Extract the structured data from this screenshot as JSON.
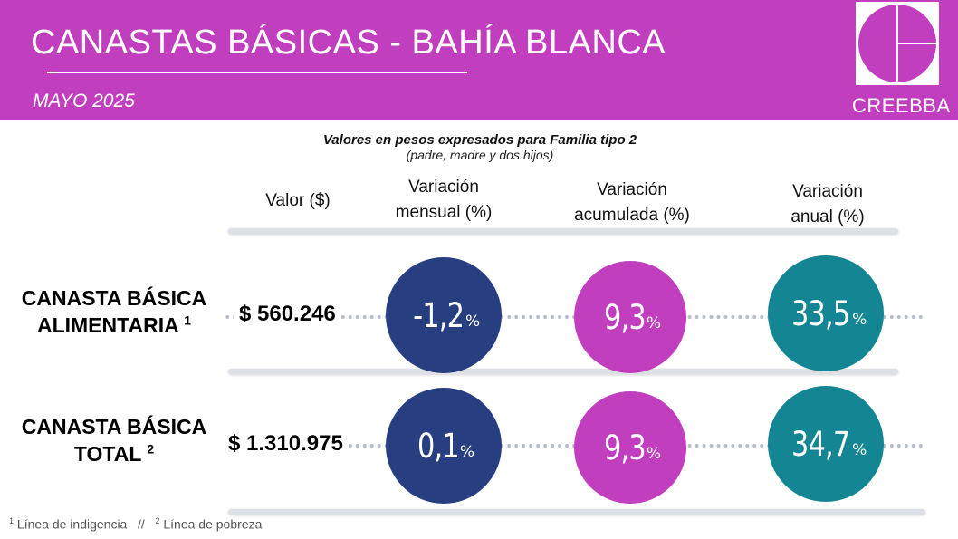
{
  "header": {
    "title": "CANASTAS  BÁSICAS - BAHÍA  BLANCA",
    "subtitle": "MAYO 2025",
    "logo_text": "CREEBBA",
    "background_color": "#c13fbe"
  },
  "intro": {
    "main": "Valores en pesos expresados para Familia tipo 2",
    "sub": "(padre, madre y dos hijos)"
  },
  "columns": {
    "valor": "Valor ($)",
    "mensual": [
      "Variación",
      "mensual (%)"
    ],
    "acumulada": [
      "Variación",
      "acumulada (%)"
    ],
    "anual": [
      "Variación",
      "anual (%)"
    ]
  },
  "rows": [
    {
      "label_line1": "CANASTA BÁSICA",
      "label_line2": "ALIMENTARIA",
      "footnote_ref": "1",
      "valor": "$ 560.246",
      "mensual": "-1,2",
      "acumulada": "9,3",
      "anual": "33,5",
      "unit": "%"
    },
    {
      "label_line1": "CANASTA BÁSICA",
      "label_line2": "TOTAL",
      "footnote_ref": "2",
      "valor": "$ 1.310.975",
      "mensual": "0,1",
      "acumulada": "9,3",
      "anual": "34,7",
      "unit": "%"
    }
  ],
  "footnote": {
    "ref1": "1",
    "text1": " Línea de indigencia   //   ",
    "ref2": "2",
    "text2": " Línea de pobreza"
  },
  "colors": {
    "mensual": "#273e80",
    "acumulada": "#c13fbe",
    "anual": "#148593"
  }
}
